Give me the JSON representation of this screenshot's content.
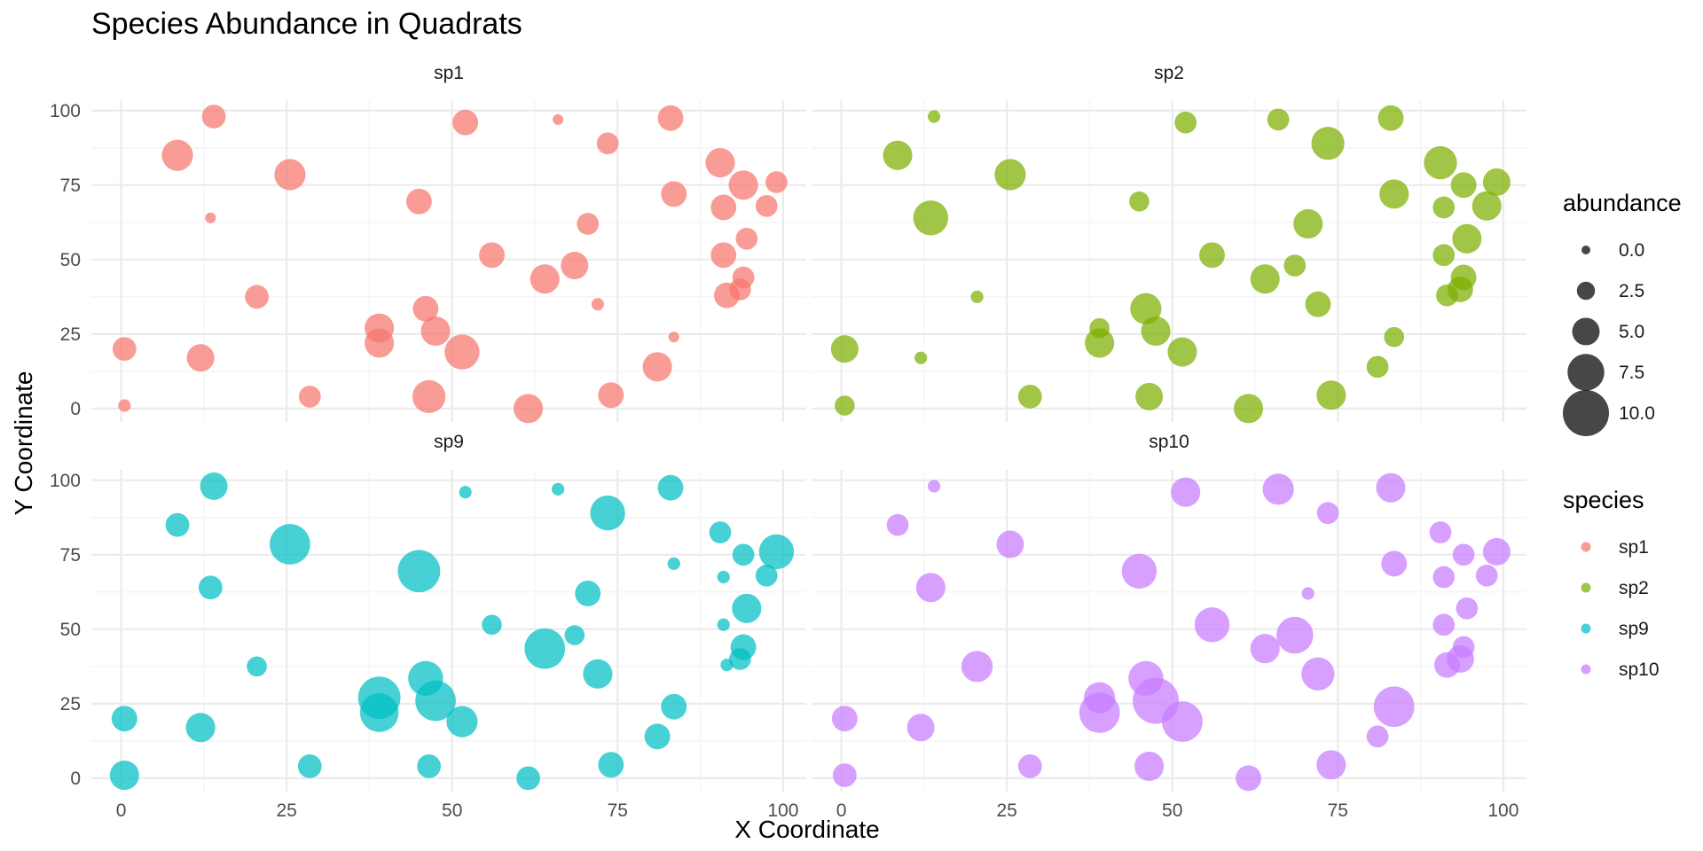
{
  "chart_data": {
    "type": "scatter",
    "title": "Species Abundance in Quadrats",
    "xlabel": "X Coordinate",
    "ylabel": "Y Coordinate",
    "xlim": [
      -4.5,
      103.5
    ],
    "ylim": [
      -4.5,
      103.5
    ],
    "x_ticks": [
      0,
      25,
      50,
      75,
      100
    ],
    "y_ticks": [
      0,
      25,
      50,
      75,
      100
    ],
    "grid": true,
    "facets": [
      "sp1",
      "sp2",
      "sp9",
      "sp10"
    ],
    "colors": {
      "sp1": "#F8766D",
      "sp2": "#7CAE00",
      "sp9": "#00BFC4",
      "sp10": "#C77CFF"
    },
    "size_legend": {
      "title": "abundance",
      "breaks": [
        0.0,
        2.5,
        5.0,
        7.5,
        10.0
      ],
      "labels": [
        "0.0",
        "2.5",
        "5.0",
        "7.5",
        "10.0"
      ]
    },
    "color_legend": {
      "title": "species",
      "labels": [
        "sp1",
        "sp2",
        "sp9",
        "sp10"
      ]
    },
    "quadrats": [
      [
        0.5,
        1
      ],
      [
        0.5,
        20
      ],
      [
        8.5,
        85
      ],
      [
        12,
        17
      ],
      [
        13.5,
        64
      ],
      [
        14,
        98
      ],
      [
        20.5,
        37.5
      ],
      [
        25.5,
        78.5
      ],
      [
        28.5,
        4
      ],
      [
        39,
        22
      ],
      [
        39,
        27
      ],
      [
        45,
        69.5
      ],
      [
        46,
        33.5
      ],
      [
        46.5,
        4
      ],
      [
        47.5,
        26
      ],
      [
        51.5,
        19
      ],
      [
        52,
        96
      ],
      [
        56,
        51.5
      ],
      [
        61.5,
        0
      ],
      [
        64,
        43.5
      ],
      [
        66,
        97
      ],
      [
        68.5,
        48
      ],
      [
        70.5,
        62
      ],
      [
        72,
        35
      ],
      [
        73.5,
        89
      ],
      [
        74,
        4.5
      ],
      [
        81,
        14
      ],
      [
        83,
        97.5
      ],
      [
        83.5,
        72
      ],
      [
        83.5,
        24
      ],
      [
        90.5,
        82.5
      ],
      [
        91,
        51.5
      ],
      [
        91,
        67.5
      ],
      [
        91.5,
        38
      ],
      [
        93.5,
        40
      ],
      [
        94,
        75
      ],
      [
        94,
        44
      ],
      [
        94.5,
        57
      ],
      [
        97.5,
        68
      ],
      [
        99,
        76
      ]
    ],
    "series": [
      {
        "name": "sp1",
        "abundance": [
          1,
          4,
          6,
          5,
          0.5,
          4,
          4,
          6,
          3.5,
          5.5,
          5.5,
          4.5,
          4.5,
          6.5,
          5.5,
          7,
          4.5,
          4.5,
          5.5,
          5.5,
          0.5,
          5,
          3.5,
          1,
          3.5,
          4.5,
          5.5,
          4.5,
          4.5,
          0.5,
          5.5,
          4.5,
          4.5,
          4.5,
          3.5,
          5.5,
          3.5,
          3.5,
          3.5,
          3.5
        ]
      },
      {
        "name": "sp2",
        "abundance": [
          3,
          5,
          5.5,
          1,
          7,
          1,
          1,
          6,
          4,
          5.5,
          3,
          3,
          6,
          5,
          5.5,
          5.5,
          3.5,
          4.5,
          5.5,
          5.5,
          3.5,
          3.5,
          5.5,
          4.5,
          6.5,
          5.5,
          3.5,
          4.5,
          5.5,
          3,
          6.5,
          3.5,
          3.5,
          3.5,
          4.5,
          4.5,
          4.5,
          5.5,
          5.5,
          5
        ]
      },
      {
        "name": "sp9",
        "abundance": [
          5.5,
          4.5,
          4,
          5.5,
          4,
          5,
          3,
          8.5,
          4,
          8,
          9,
          9,
          7,
          4,
          8.5,
          6,
          1,
          3,
          4,
          8.5,
          1,
          3,
          4.5,
          5.5,
          7,
          4.5,
          4.5,
          4.5,
          1,
          4.5,
          3.5,
          1,
          1,
          1,
          3.5,
          3.5,
          4.5,
          5.5,
          3.5,
          7
        ]
      },
      {
        "name": "sp10",
        "abundance": [
          4,
          4.5,
          3.5,
          5,
          5.5,
          1,
          6,
          5,
          4,
          8.5,
          6,
          7,
          7,
          5.5,
          10,
          8.5,
          5.5,
          7,
          4.5,
          5.5,
          6,
          7.5,
          1,
          6.5,
          3.5,
          5.5,
          3.5,
          5.5,
          4.5,
          8.5,
          3.5,
          3.5,
          3.5,
          4.5,
          5,
          3.5,
          3.5,
          3.5,
          3.5,
          5
        ]
      }
    ]
  }
}
